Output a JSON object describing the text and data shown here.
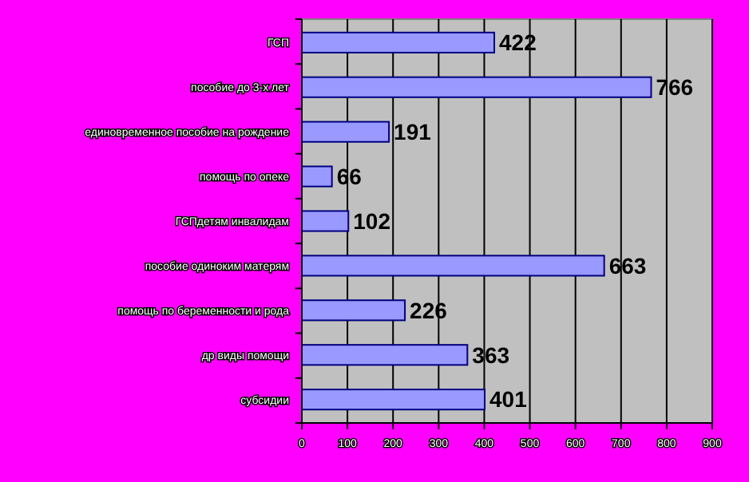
{
  "chart_data": {
    "type": "bar",
    "orientation": "horizontal",
    "categories": [
      "ГСП",
      "пособие до 3-х лет",
      "единовременное пособие на рождение",
      "помощь по опеке",
      "ГСПдетям инвалидам",
      "пособие одиноким матерям",
      "помощь по беременности и рода",
      "др виды помощи",
      "субсидии"
    ],
    "values": [
      422,
      766,
      191,
      66,
      102,
      663,
      226,
      363,
      401
    ],
    "color": "#9999ff",
    "xlim": [
      0,
      900
    ],
    "xticks": [
      0,
      100,
      200,
      300,
      400,
      500,
      600,
      700,
      800,
      900
    ],
    "grid": "x",
    "data_labels": true
  }
}
